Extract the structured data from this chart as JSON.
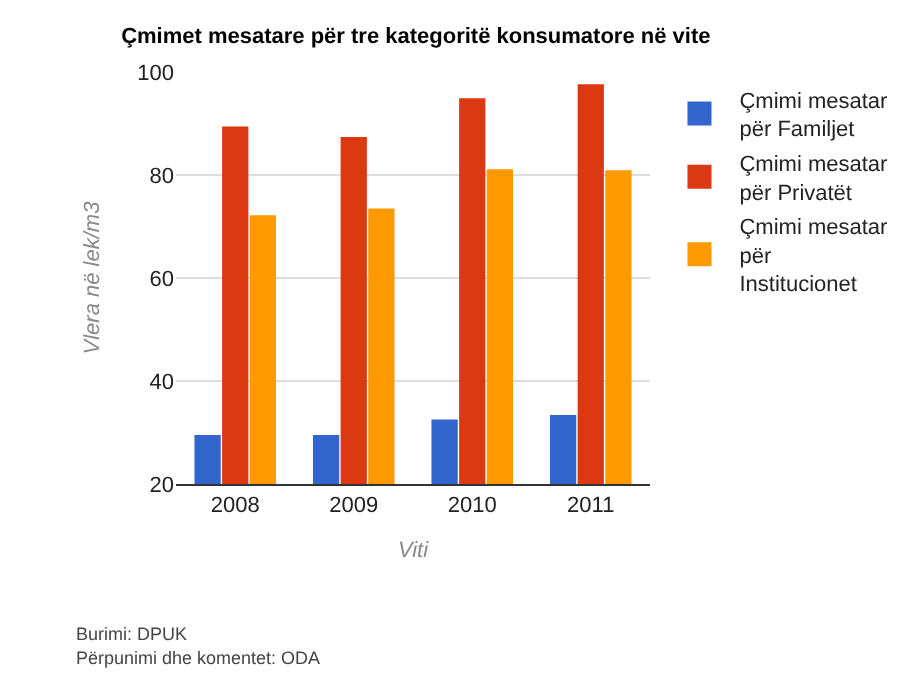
{
  "chart_data": {
    "type": "bar",
    "title": "Çmimet mesatare për tre kategoritë konsumatore në vite",
    "xlabel": "Viti",
    "ylabel": "Vlera në lek/m3",
    "categories": [
      "2008",
      "2009",
      "2010",
      "2011"
    ],
    "series": [
      {
        "name": "Çmimi mesatar për Familjet",
        "color": "#3366cc",
        "values": [
          29.5,
          29.5,
          32.5,
          33.4
        ]
      },
      {
        "name": "Çmimi mesatar për Privatët",
        "color": "#dc3912",
        "values": [
          89.4,
          87.4,
          94.9,
          97.6
        ]
      },
      {
        "name": "Çmimi mesatar për Institucionet",
        "color": "#ff9900",
        "values": [
          72.2,
          73.5,
          81.1,
          80.9
        ]
      }
    ],
    "ylim": [
      20,
      100
    ],
    "yticks": [
      20,
      40,
      60,
      80,
      100
    ],
    "grid": "y",
    "legend": "right",
    "annotations": [
      "Burimi: DPUK",
      "Përpunimi dhe komentet: ODA"
    ]
  }
}
